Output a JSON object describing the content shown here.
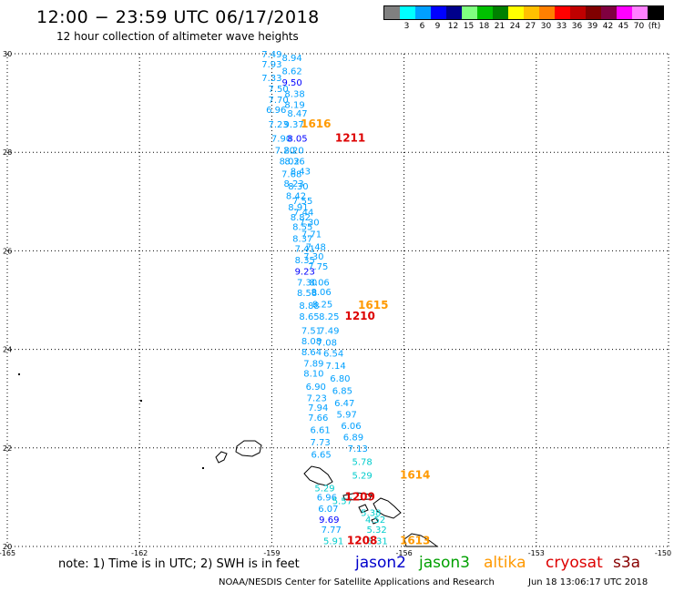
{
  "title": "12:00 − 23:59 UTC 06/17/2018",
  "subtitle": "12 hour collection of altimeter wave heights",
  "legend": {
    "colors": [
      "#808080",
      "#00ffff",
      "#00a0ff",
      "#0000ff",
      "#00008b",
      "#80ff80",
      "#00c000",
      "#008000",
      "#ffff00",
      "#ffc000",
      "#ff8000",
      "#ff0000",
      "#c00000",
      "#800000",
      "#800040",
      "#ff00ff",
      "#ff80ff",
      "#000000"
    ],
    "labels": [
      "",
      "3",
      "6",
      "9",
      "12",
      "15",
      "18",
      "21",
      "24",
      "27",
      "30",
      "33",
      "36",
      "39",
      "42",
      "45",
      "70",
      "(ft)"
    ]
  },
  "note": "note: 1) Time is in UTC; 2) SWH is in feet",
  "satellites": [
    {
      "name": "jason2",
      "color": "#0000cc"
    },
    {
      "name": "jason3",
      "color": "#00a000"
    },
    {
      "name": "altika",
      "color": "#ff9900"
    },
    {
      "name": "cryosat",
      "color": "#dd0000"
    },
    {
      "name": "s3a",
      "color": "#880000"
    }
  ],
  "credit": "NOAA/NESDIS Center for Satellite Applications and Research",
  "stamp": "Jun 18 13:06:17 UTC 2018",
  "axes": {
    "lon_ticks": [
      "-165",
      "-162",
      "-159",
      "-156",
      "-153",
      "-150"
    ],
    "lat_ticks": [
      "30",
      "28",
      "26",
      "24",
      "22",
      "20"
    ],
    "lon_range": [
      -165,
      -150
    ],
    "lat_range": [
      20,
      30
    ]
  },
  "wave_heights": [
    {
      "v": "7.49",
      "lon": -159.0,
      "lat": 29.93,
      "c": "#00a0ff"
    },
    {
      "v": "8.94",
      "lon": -158.54,
      "lat": 29.85,
      "c": "#00a0ff"
    },
    {
      "v": "7.93",
      "lon": -159.0,
      "lat": 29.72,
      "c": "#00a0ff"
    },
    {
      "v": "8.62",
      "lon": -158.54,
      "lat": 29.58,
      "c": "#00a0ff"
    },
    {
      "v": "7.33",
      "lon": -159.0,
      "lat": 29.45,
      "c": "#00a0ff"
    },
    {
      "v": "9.50",
      "lon": -158.54,
      "lat": 29.35,
      "c": "#0000ff"
    },
    {
      "v": "7.50",
      "lon": -158.85,
      "lat": 29.22,
      "c": "#00a0ff"
    },
    {
      "v": "8.38",
      "lon": -158.48,
      "lat": 29.12,
      "c": "#00a0ff"
    },
    {
      "v": "7.70",
      "lon": -158.85,
      "lat": 29.0,
      "c": "#00a0ff"
    },
    {
      "v": "8.19",
      "lon": -158.48,
      "lat": 28.9,
      "c": "#00a0ff"
    },
    {
      "v": "6.96",
      "lon": -158.9,
      "lat": 28.8,
      "c": "#00a0ff"
    },
    {
      "v": "8.47",
      "lon": -158.42,
      "lat": 28.72,
      "c": "#00a0ff"
    },
    {
      "v": "7.23",
      "lon": -158.85,
      "lat": 28.5,
      "c": "#00a0ff"
    },
    {
      "v": "9.37",
      "lon": -158.5,
      "lat": 28.5,
      "c": "#00a0ff"
    },
    {
      "v": "7.90",
      "lon": -158.78,
      "lat": 28.22,
      "c": "#00a0ff"
    },
    {
      "v": "8.05",
      "lon": -158.42,
      "lat": 28.22,
      "c": "#0000ff"
    },
    {
      "v": "7.20",
      "lon": -158.7,
      "lat": 27.98,
      "c": "#00a0ff"
    },
    {
      "v": "8.20",
      "lon": -158.5,
      "lat": 27.98,
      "c": "#00a0ff"
    },
    {
      "v": "8.02",
      "lon": -158.6,
      "lat": 27.75,
      "c": "#00a0ff"
    },
    {
      "v": "8.36",
      "lon": -158.48,
      "lat": 27.75,
      "c": "#00a0ff"
    },
    {
      "v": "7.68",
      "lon": -158.55,
      "lat": 27.5,
      "c": "#00a0ff"
    },
    {
      "v": "8.43",
      "lon": -158.35,
      "lat": 27.55,
      "c": "#00a0ff"
    },
    {
      "v": "8.23",
      "lon": -158.5,
      "lat": 27.3,
      "c": "#00a0ff"
    },
    {
      "v": "8.30",
      "lon": -158.4,
      "lat": 27.25,
      "c": "#00a0ff"
    },
    {
      "v": "8.42",
      "lon": -158.45,
      "lat": 27.05,
      "c": "#00a0ff"
    },
    {
      "v": "7.55",
      "lon": -158.3,
      "lat": 26.95,
      "c": "#00a0ff"
    },
    {
      "v": "8.91",
      "lon": -158.4,
      "lat": 26.82,
      "c": "#00a0ff"
    },
    {
      "v": "7.44",
      "lon": -158.28,
      "lat": 26.72,
      "c": "#00a0ff"
    },
    {
      "v": "8.82",
      "lon": -158.35,
      "lat": 26.62,
      "c": "#00a0ff"
    },
    {
      "v": "7.30",
      "lon": -158.15,
      "lat": 26.52,
      "c": "#00a0ff"
    },
    {
      "v": "8.55",
      "lon": -158.3,
      "lat": 26.42,
      "c": "#00a0ff"
    },
    {
      "v": "7.71",
      "lon": -158.1,
      "lat": 26.28,
      "c": "#00a0ff"
    },
    {
      "v": "8.37",
      "lon": -158.3,
      "lat": 26.18,
      "c": "#00a0ff"
    },
    {
      "v": "7.41",
      "lon": -158.25,
      "lat": 25.98,
      "c": "#00a0ff"
    },
    {
      "v": "7.48",
      "lon": -158.0,
      "lat": 26.02,
      "c": "#00a0ff"
    },
    {
      "v": "7.30",
      "lon": -158.05,
      "lat": 25.82,
      "c": "#00a0ff"
    },
    {
      "v": "8.35",
      "lon": -158.25,
      "lat": 25.75,
      "c": "#00a0ff"
    },
    {
      "v": "7.75",
      "lon": -157.95,
      "lat": 25.62,
      "c": "#00a0ff"
    },
    {
      "v": "9.23",
      "lon": -158.25,
      "lat": 25.52,
      "c": "#0000ff"
    },
    {
      "v": "7.30",
      "lon": -158.2,
      "lat": 25.3,
      "c": "#00a0ff"
    },
    {
      "v": "8.06",
      "lon": -157.92,
      "lat": 25.3,
      "c": "#00a0ff"
    },
    {
      "v": "8.58",
      "lon": -158.2,
      "lat": 25.08,
      "c": "#00a0ff"
    },
    {
      "v": "8.06",
      "lon": -157.88,
      "lat": 25.1,
      "c": "#00a0ff"
    },
    {
      "v": "8.88",
      "lon": -158.15,
      "lat": 24.82,
      "c": "#00a0ff"
    },
    {
      "v": "8.25",
      "lon": -157.85,
      "lat": 24.85,
      "c": "#00a0ff"
    },
    {
      "v": "8.65",
      "lon": -158.15,
      "lat": 24.6,
      "c": "#00a0ff"
    },
    {
      "v": "8.25",
      "lon": -157.7,
      "lat": 24.6,
      "c": "#00a0ff"
    },
    {
      "v": "7.51",
      "lon": -158.1,
      "lat": 24.32,
      "c": "#00a0ff"
    },
    {
      "v": "7.49",
      "lon": -157.7,
      "lat": 24.32,
      "c": "#00a0ff"
    },
    {
      "v": "8.08",
      "lon": -158.1,
      "lat": 24.1,
      "c": "#00a0ff"
    },
    {
      "v": "7.08",
      "lon": -157.75,
      "lat": 24.08,
      "c": "#00a0ff"
    },
    {
      "v": "8.64",
      "lon": -158.1,
      "lat": 23.88,
      "c": "#00a0ff"
    },
    {
      "v": "6.54",
      "lon": -157.6,
      "lat": 23.85,
      "c": "#00a0ff"
    },
    {
      "v": "7.89",
      "lon": -158.05,
      "lat": 23.65,
      "c": "#00a0ff"
    },
    {
      "v": "7.14",
      "lon": -157.55,
      "lat": 23.6,
      "c": "#00a0ff"
    },
    {
      "v": "8.10",
      "lon": -158.05,
      "lat": 23.45,
      "c": "#00a0ff"
    },
    {
      "v": "6.80",
      "lon": -157.45,
      "lat": 23.35,
      "c": "#00a0ff"
    },
    {
      "v": "6.90",
      "lon": -158.0,
      "lat": 23.18,
      "c": "#00a0ff"
    },
    {
      "v": "6.85",
      "lon": -157.4,
      "lat": 23.1,
      "c": "#00a0ff"
    },
    {
      "v": "7.23",
      "lon": -157.98,
      "lat": 22.95,
      "c": "#00a0ff"
    },
    {
      "v": "6.47",
      "lon": -157.35,
      "lat": 22.85,
      "c": "#00a0ff"
    },
    {
      "v": "7.94",
      "lon": -157.95,
      "lat": 22.75,
      "c": "#00a0ff"
    },
    {
      "v": "5.97",
      "lon": -157.3,
      "lat": 22.62,
      "c": "#00a0ff"
    },
    {
      "v": "7.66",
      "lon": -157.95,
      "lat": 22.55,
      "c": "#00a0ff"
    },
    {
      "v": "6.06",
      "lon": -157.2,
      "lat": 22.38,
      "c": "#00a0ff"
    },
    {
      "v": "6.61",
      "lon": -157.9,
      "lat": 22.3,
      "c": "#00a0ff"
    },
    {
      "v": "6.89",
      "lon": -157.15,
      "lat": 22.15,
      "c": "#00a0ff"
    },
    {
      "v": "7.73",
      "lon": -157.9,
      "lat": 22.05,
      "c": "#00a0ff"
    },
    {
      "v": "7.13",
      "lon": -157.05,
      "lat": 21.92,
      "c": "#00a0ff"
    },
    {
      "v": "6.65",
      "lon": -157.88,
      "lat": 21.8,
      "c": "#00a0ff"
    },
    {
      "v": "5.78",
      "lon": -156.95,
      "lat": 21.65,
      "c": "#00cccc"
    },
    {
      "v": "5.29",
      "lon": -156.95,
      "lat": 21.38,
      "c": "#00cccc"
    },
    {
      "v": "5.29",
      "lon": -157.8,
      "lat": 21.12,
      "c": "#00cccc"
    },
    {
      "v": "6.96",
      "lon": -157.75,
      "lat": 20.93,
      "c": "#00a0ff"
    },
    {
      "v": "5.57",
      "lon": -157.4,
      "lat": 20.86,
      "c": "#00cccc"
    },
    {
      "v": "6.07",
      "lon": -157.72,
      "lat": 20.7,
      "c": "#00a0ff"
    },
    {
      "v": "5.38",
      "lon": -156.75,
      "lat": 20.62,
      "c": "#00cccc"
    },
    {
      "v": "9.69",
      "lon": -157.7,
      "lat": 20.48,
      "c": "#0000ff"
    },
    {
      "v": "4.52",
      "lon": -156.65,
      "lat": 20.48,
      "c": "#00cccc"
    },
    {
      "v": "7.77",
      "lon": -157.65,
      "lat": 20.28,
      "c": "#00a0ff"
    },
    {
      "v": "5.32",
      "lon": -156.62,
      "lat": 20.28,
      "c": "#00cccc"
    },
    {
      "v": "5.91",
      "lon": -157.6,
      "lat": 20.05,
      "c": "#00cccc"
    },
    {
      "v": "5.31",
      "lon": -156.6,
      "lat": 20.05,
      "c": "#00cccc"
    }
  ],
  "time_labels": [
    {
      "t": "1616",
      "lon": -158.0,
      "lat": 28.5,
      "c": "#ff9900"
    },
    {
      "t": "1211",
      "lon": -157.22,
      "lat": 28.22,
      "c": "#dd0000"
    },
    {
      "t": "1615",
      "lon": -156.7,
      "lat": 24.82,
      "c": "#ff9900"
    },
    {
      "t": "1210",
      "lon": -157.0,
      "lat": 24.6,
      "c": "#dd0000"
    },
    {
      "t": "1614",
      "lon": -155.75,
      "lat": 21.38,
      "c": "#ff9900"
    },
    {
      "t": "1209",
      "lon": -157.0,
      "lat": 20.93,
      "c": "#dd0000"
    },
    {
      "t": "1208",
      "lon": -156.95,
      "lat": 20.05,
      "c": "#dd0000"
    },
    {
      "t": "1613",
      "lon": -155.75,
      "lat": 20.05,
      "c": "#ff9900"
    }
  ]
}
